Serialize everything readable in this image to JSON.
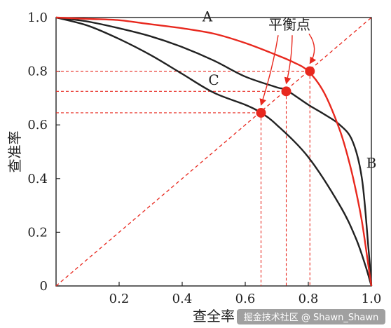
{
  "chart_data": {
    "type": "line",
    "xlabel": "查全率",
    "ylabel": "查准率",
    "xlim": [
      0,
      1.0
    ],
    "ylim": [
      0,
      1.0
    ],
    "x_ticks": [
      0.2,
      0.4,
      0.6,
      0.8,
      1.0
    ],
    "x_tick_labels": [
      "0.2",
      "0.4",
      "0.6",
      "0.8",
      "1.0"
    ],
    "y_ticks": [
      0,
      0.2,
      0.4,
      0.6,
      0.8,
      1.0
    ],
    "y_tick_labels": [
      "0",
      "0.2",
      "0.4",
      "0.6",
      "0.8",
      "1.0"
    ],
    "series": [
      {
        "name": "A",
        "color": "#e8281e",
        "x": [
          0,
          0.1,
          0.2,
          0.3,
          0.4,
          0.5,
          0.6,
          0.7,
          0.75,
          0.8,
          0.85,
          0.9,
          0.93,
          0.95,
          0.97,
          0.99,
          1.0
        ],
        "y": [
          1.0,
          0.995,
          0.99,
          0.975,
          0.96,
          0.94,
          0.905,
          0.86,
          0.835,
          0.8,
          0.72,
          0.58,
          0.46,
          0.36,
          0.24,
          0.08,
          0
        ]
      },
      {
        "name": "B",
        "color": "#222222",
        "x": [
          0,
          0.1,
          0.2,
          0.3,
          0.4,
          0.5,
          0.6,
          0.7,
          0.73,
          0.8,
          0.85,
          0.9,
          0.94,
          0.97,
          0.99,
          1.0
        ],
        "y": [
          1.0,
          0.985,
          0.96,
          0.93,
          0.89,
          0.84,
          0.78,
          0.74,
          0.73,
          0.675,
          0.64,
          0.6,
          0.54,
          0.4,
          0.15,
          0
        ]
      },
      {
        "name": "C",
        "color": "#222222",
        "x": [
          0,
          0.1,
          0.2,
          0.3,
          0.4,
          0.5,
          0.6,
          0.65,
          0.7,
          0.8,
          0.9,
          0.95,
          0.98,
          1.0
        ],
        "y": [
          1.0,
          0.97,
          0.92,
          0.86,
          0.79,
          0.72,
          0.675,
          0.645,
          0.6,
          0.48,
          0.3,
          0.18,
          0.08,
          0
        ]
      }
    ],
    "diagonal": {
      "x": [
        0,
        1.0
      ],
      "y": [
        0,
        1.0
      ],
      "color": "#e8281e"
    },
    "break_even_points": [
      {
        "x": 0.65,
        "y": 0.645
      },
      {
        "x": 0.73,
        "y": 0.725
      },
      {
        "x": 0.805,
        "y": 0.8
      }
    ],
    "annotation": "平衡点"
  },
  "watermark": "掘金技术社区 @ Shawn_Shawn"
}
